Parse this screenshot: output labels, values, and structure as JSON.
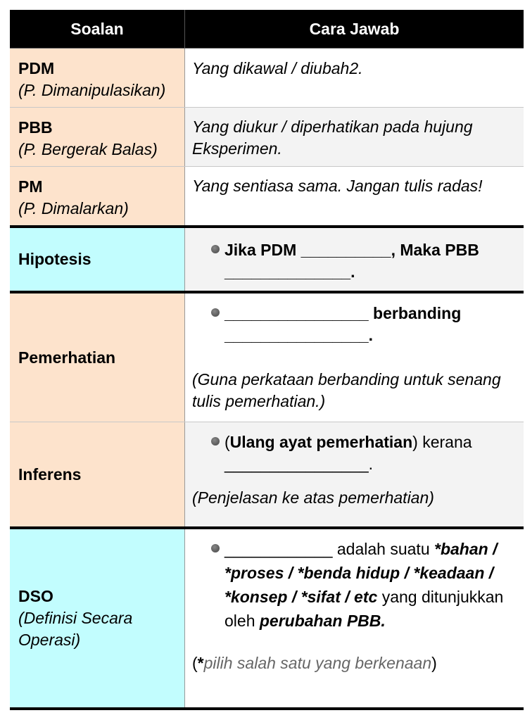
{
  "header": {
    "col1": "Soalan",
    "col2": "Cara Jawab"
  },
  "rows": [
    {
      "label": "PDM",
      "sub": "(P. Dimanipulasikan)",
      "answer": "Yang dikawal / diubah2."
    },
    {
      "label": "PBB",
      "sub": "(P. Bergerak Balas)",
      "answer": "Yang diukur / diperhatikan pada hujung Eksperimen."
    },
    {
      "label": "PM",
      "sub": "(P. Dimalarkan)",
      "answer": "Yang sentiasa sama. Jangan tulis radas!"
    }
  ],
  "hipotesis": {
    "label": "Hipotesis",
    "answer": "Jika PDM __________, Maka PBB ______________."
  },
  "pemerhatian": {
    "label": "Pemerhatian",
    "bullet_a": "________________",
    "bullet_b": " berbanding ________________.",
    "note": "(Guna perkataan berbanding untuk senang tulis pemerhatian.)"
  },
  "inferens": {
    "label": "Inferens",
    "open": "(",
    "bold": "Ulang ayat pemerhatian",
    "close": ")",
    "rest": " kerana ________________.",
    "note": "(Penjelasan ke atas pemerhatian)"
  },
  "dso": {
    "label": "DSO",
    "sub": "(Definisi Secara Operasi)",
    "blank": "____________",
    "t1": " adalah suatu ",
    "options": "*bahan / *proses / *benda hidup / *keadaan / *konsep / *sifat / etc",
    "t2": " yang ditunjukkan oleh ",
    "emph": "perubahan PBB.",
    "note_open": "(",
    "note_star": "*",
    "note_text": "pilih salah satu yang berkenaan",
    "note_close": ")"
  },
  "colors": {
    "header_bg": "#000000",
    "peach": "#fde3cc",
    "cyan": "#c2fdfe",
    "alt_row": "#f3f3f3"
  }
}
